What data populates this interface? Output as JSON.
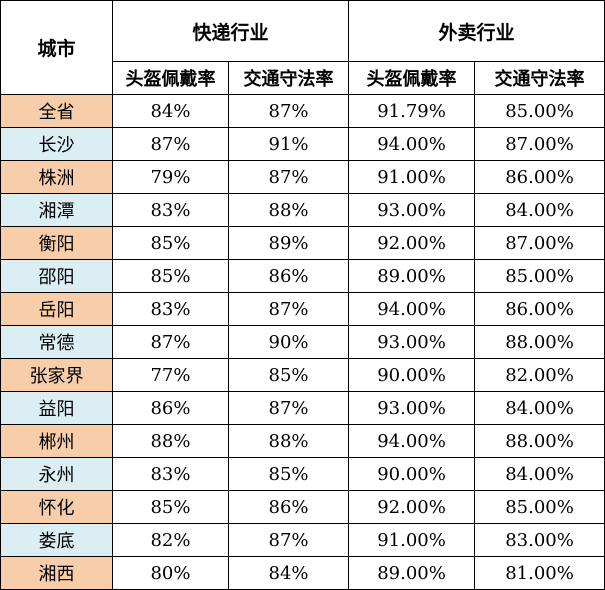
{
  "header": {
    "city": "城市",
    "groups": [
      "快递行业",
      "外卖行业"
    ],
    "subcols": [
      "头盔佩戴率",
      "交通守法率",
      "头盔佩戴率",
      "交通守法率"
    ]
  },
  "rows": [
    {
      "city": "全省",
      "values": [
        "84%",
        "87%",
        "91.79%",
        "85.00%"
      ]
    },
    {
      "city": "长沙",
      "values": [
        "87%",
        "91%",
        "94.00%",
        "87.00%"
      ]
    },
    {
      "city": "株洲",
      "values": [
        "79%",
        "87%",
        "91.00%",
        "86.00%"
      ]
    },
    {
      "city": "湘潭",
      "values": [
        "83%",
        "88%",
        "93.00%",
        "84.00%"
      ]
    },
    {
      "city": "衡阳",
      "values": [
        "85%",
        "89%",
        "92.00%",
        "87.00%"
      ]
    },
    {
      "city": "邵阳",
      "values": [
        "85%",
        "86%",
        "89.00%",
        "85.00%"
      ]
    },
    {
      "city": "岳阳",
      "values": [
        "83%",
        "87%",
        "94.00%",
        "86.00%"
      ]
    },
    {
      "city": "常德",
      "values": [
        "87%",
        "90%",
        "93.00%",
        "88.00%"
      ]
    },
    {
      "city": "张家界",
      "values": [
        "77%",
        "85%",
        "90.00%",
        "82.00%"
      ]
    },
    {
      "city": "益阳",
      "values": [
        "86%",
        "87%",
        "93.00%",
        "84.00%"
      ]
    },
    {
      "city": "郴州",
      "values": [
        "88%",
        "88%",
        "94.00%",
        "88.00%"
      ]
    },
    {
      "city": "永州",
      "values": [
        "83%",
        "85%",
        "90.00%",
        "84.00%"
      ]
    },
    {
      "city": "怀化",
      "values": [
        "85%",
        "86%",
        "92.00%",
        "85.00%"
      ]
    },
    {
      "city": "娄底",
      "values": [
        "82%",
        "87%",
        "91.00%",
        "83.00%"
      ]
    },
    {
      "city": "湘西",
      "values": [
        "80%",
        "84%",
        "89.00%",
        "81.00%"
      ]
    }
  ],
  "colors": {
    "row_odd": "#f8cdaa",
    "row_even": "#dbeef3",
    "border": "#000000"
  }
}
